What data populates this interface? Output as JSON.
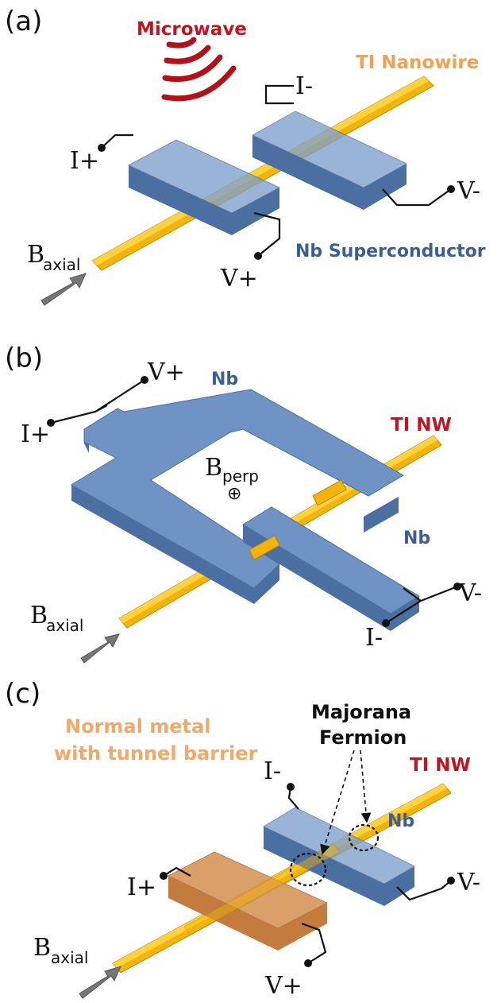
{
  "panel_a": {
    "label": "(a)",
    "microwave": "Microwave",
    "nanowire": "TI Nanowire",
    "superconductor": "Nb Superconductor",
    "i_minus": "I-",
    "i_plus": "I+",
    "v_minus": "V-",
    "v_plus": "V+",
    "b_main": "B",
    "b_sub": "axial"
  },
  "panel_b": {
    "label": "(b)",
    "v_plus": "V+",
    "i_plus": "I+",
    "nb_top": "Nb",
    "nanowire": "TI NW",
    "b_perp_main": "B",
    "b_perp_sub": "perp",
    "b_perp_symbol": "⊕",
    "nb_bottom": "Nb",
    "v_minus": "V-",
    "i_minus": "I-",
    "b_main": "B",
    "b_sub": "axial"
  },
  "panel_c": {
    "label": "(c)",
    "majorana_line1": "Majorana",
    "majorana_line2": "Fermion",
    "normal_metal_line1": "Normal metal",
    "normal_metal_line2": "with tunnel barrier",
    "nanowire": "TI NW",
    "nb": "Nb",
    "i_minus": "I-",
    "i_plus": "I+",
    "v_minus": "V-",
    "v_plus": "V+",
    "b_main": "B",
    "b_sub": "axial"
  },
  "colors": {
    "wire": "#f2b40c",
    "niobium": "#6f93c4",
    "normal_metal": "#d9975e",
    "microwave": "#b01218",
    "red_text": "#c0141e",
    "blue_text": "#3c5f92",
    "orange_text": "#f2a24e"
  }
}
